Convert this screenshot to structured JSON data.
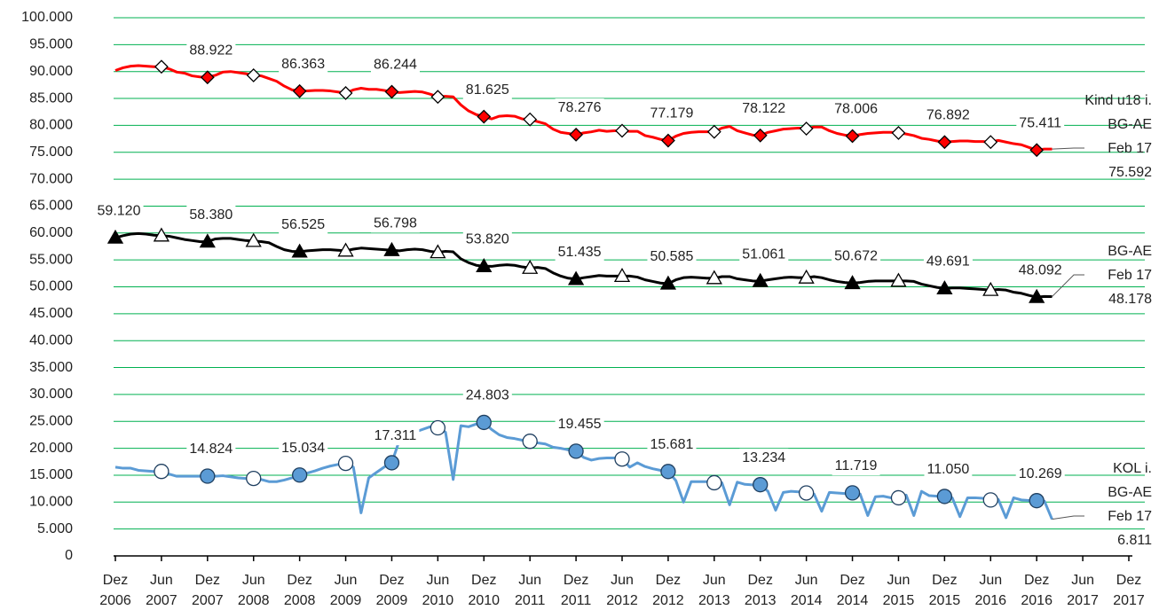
{
  "chart_data": {
    "type": "line",
    "categories": [
      "Dez 2006",
      null,
      null,
      null,
      null,
      null,
      "Jun 2007",
      null,
      null,
      null,
      null,
      null,
      "Dez 2007",
      null,
      null,
      null,
      null,
      null,
      "Jun 2008",
      null,
      null,
      null,
      null,
      null,
      "Dez 2008",
      null,
      null,
      null,
      null,
      null,
      "Jun 2009",
      null,
      null,
      null,
      null,
      null,
      "Dez 2009",
      null,
      null,
      null,
      null,
      null,
      "Jun 2010",
      null,
      null,
      null,
      null,
      null,
      "Dez 2010",
      null,
      null,
      null,
      null,
      null,
      "Jun 2011",
      null,
      null,
      null,
      null,
      null,
      "Dez 2011",
      null,
      null,
      null,
      null,
      null,
      "Jun 2012",
      null,
      null,
      null,
      null,
      null,
      "Dez 2012",
      null,
      null,
      null,
      null,
      null,
      "Jun 2013",
      null,
      null,
      null,
      null,
      null,
      "Dez 2013",
      null,
      null,
      null,
      null,
      null,
      "Jun 2014",
      null,
      null,
      null,
      null,
      null,
      "Dez 2014",
      null,
      null,
      null,
      null,
      null,
      "Jun 2015",
      null,
      null,
      null,
      null,
      null,
      "Dez 2015",
      null,
      null,
      null,
      null,
      null,
      "Jun 2016",
      null,
      null,
      null,
      null,
      null,
      "Dez 2016",
      null,
      null,
      null,
      null,
      null,
      "Jun 2017",
      null,
      null,
      null,
      null,
      null,
      "Dez 2017"
    ],
    "ylim": [
      0,
      100000
    ],
    "yticks": [
      0,
      {
        "value": 5000,
        "label": "5.000"
      },
      {
        "value": 10000,
        "label": "10.000"
      },
      {
        "value": 15000,
        "label": "15.000"
      },
      {
        "value": 20000,
        "label": "20.000"
      },
      {
        "value": 25000,
        "label": "25.000"
      },
      {
        "value": 30000,
        "label": "30.000"
      },
      {
        "value": 35000,
        "label": "35.000"
      },
      {
        "value": 40000,
        "label": "40.000"
      },
      {
        "value": 45000,
        "label": "45.000"
      },
      {
        "value": 50000,
        "label": "50.000"
      },
      {
        "value": 55000,
        "label": "55.000"
      },
      {
        "value": 60000,
        "label": "60.000"
      },
      {
        "value": 65000,
        "label": "65.000"
      },
      {
        "value": 70000,
        "label": "70.000"
      },
      {
        "value": 75000,
        "label": "75.000"
      },
      {
        "value": 80000,
        "label": "80.000"
      },
      {
        "value": 85000,
        "label": "85.000"
      },
      {
        "value": 90000,
        "label": "90.000"
      },
      {
        "value": 95000,
        "label": "95.000"
      },
      {
        "value": 100000,
        "label": "100.000"
      }
    ],
    "grid": true,
    "grid_color": "#00b050",
    "series": [
      {
        "name": "Kind u18 i. BG-AE",
        "color": "#ff0000",
        "marker": "diamond",
        "marker_color": "#ff0000",
        "end_label": "Feb 17",
        "values": [
          90200,
          90700,
          91000,
          91100,
          91000,
          90900,
          90900,
          90500,
          89900,
          89700,
          89200,
          89000,
          88922,
          89300,
          89900,
          90000,
          89800,
          89600,
          89300,
          89200,
          88700,
          88200,
          87300,
          86600,
          86363,
          86400,
          86500,
          86500,
          86400,
          86200,
          86000,
          86600,
          86900,
          86700,
          86700,
          86500,
          86244,
          86100,
          86200,
          86300,
          86200,
          85800,
          85300,
          85400,
          85300,
          83800,
          82700,
          82000,
          81625,
          81200,
          81700,
          81800,
          81700,
          81200,
          81100,
          80700,
          80300,
          79300,
          78700,
          78500,
          78276,
          78600,
          78800,
          79100,
          78900,
          79000,
          79000,
          78900,
          78900,
          78100,
          77800,
          77400,
          77179,
          78000,
          78500,
          78700,
          78800,
          78800,
          78800,
          79500,
          79800,
          79000,
          78600,
          78200,
          78122,
          78700,
          79000,
          79300,
          79400,
          79500,
          79400,
          79700,
          79700,
          79000,
          78500,
          78200,
          78006,
          78300,
          78500,
          78600,
          78700,
          78700,
          78600,
          78400,
          78100,
          77600,
          77400,
          77100,
          76892,
          77000,
          77100,
          77100,
          77000,
          77000,
          76900,
          77200,
          76900,
          76600,
          76400,
          75900,
          75411,
          75600,
          75592,
          null,
          null,
          null,
          null,
          null,
          null,
          null,
          null,
          null,
          null
        ],
        "value_labels": [
          null,
          null,
          null,
          null,
          null,
          null,
          null,
          null,
          null,
          null,
          null,
          null,
          "88.922",
          null,
          null,
          null,
          null,
          null,
          null,
          null,
          null,
          null,
          null,
          null,
          "86.363",
          null,
          null,
          null,
          null,
          null,
          null,
          null,
          null,
          null,
          null,
          null,
          "86.244",
          null,
          null,
          null,
          null,
          null,
          null,
          null,
          null,
          null,
          null,
          null,
          "81.625",
          null,
          null,
          null,
          null,
          null,
          null,
          null,
          null,
          null,
          null,
          null,
          "78.276",
          null,
          null,
          null,
          null,
          null,
          null,
          null,
          null,
          null,
          null,
          null,
          "77.179",
          null,
          null,
          null,
          null,
          null,
          null,
          null,
          null,
          null,
          null,
          null,
          "78.122",
          null,
          null,
          null,
          null,
          null,
          null,
          null,
          null,
          null,
          null,
          null,
          "78.006",
          null,
          null,
          null,
          null,
          null,
          null,
          null,
          null,
          null,
          null,
          null,
          "76.892",
          null,
          null,
          null,
          null,
          null,
          null,
          null,
          null,
          null,
          null,
          null,
          "75.411",
          null,
          "75.592",
          null,
          null,
          null,
          null,
          null,
          null,
          null,
          null,
          null,
          null
        ]
      },
      {
        "name": "BG-AE",
        "color": "#000000",
        "marker": "triangle",
        "marker_color": "#000000",
        "end_label": "Feb 17",
        "values": [
          59120,
          59500,
          59800,
          59900,
          59800,
          59600,
          59500,
          59400,
          59100,
          58800,
          58600,
          58400,
          58380,
          58900,
          59000,
          59000,
          58800,
          58600,
          58500,
          58400,
          58200,
          57500,
          56900,
          56600,
          56525,
          56700,
          56800,
          56900,
          56900,
          56800,
          56700,
          57000,
          57200,
          57100,
          57000,
          56900,
          56798,
          56700,
          56900,
          57000,
          56900,
          56600,
          56400,
          56600,
          56500,
          55200,
          54500,
          54000,
          53820,
          53800,
          54000,
          54100,
          54000,
          53700,
          53500,
          53600,
          53400,
          52600,
          52000,
          51600,
          51435,
          51700,
          51900,
          52100,
          52000,
          52000,
          52000,
          52000,
          51800,
          51300,
          51000,
          50700,
          50585,
          51300,
          51700,
          51800,
          51700,
          51600,
          51600,
          51900,
          51900,
          51500,
          51300,
          51100,
          51061,
          51300,
          51500,
          51700,
          51800,
          51700,
          51700,
          51900,
          51700,
          51300,
          51000,
          50800,
          50672,
          50800,
          51000,
          51100,
          51100,
          51100,
          51100,
          51100,
          51000,
          50500,
          50200,
          49900,
          49691,
          49800,
          49800,
          49700,
          49600,
          49500,
          49400,
          49500,
          49400,
          49000,
          48800,
          48400,
          48092,
          48200,
          48178,
          null,
          null,
          null,
          null,
          null,
          null,
          null,
          null,
          null,
          null
        ],
        "value_labels": [
          "59.120",
          null,
          null,
          null,
          null,
          null,
          null,
          null,
          null,
          null,
          null,
          null,
          "58.380",
          null,
          null,
          null,
          null,
          null,
          null,
          null,
          null,
          null,
          null,
          null,
          "56.525",
          null,
          null,
          null,
          null,
          null,
          null,
          null,
          null,
          null,
          null,
          null,
          "56.798",
          null,
          null,
          null,
          null,
          null,
          null,
          null,
          null,
          null,
          null,
          null,
          "53.820",
          null,
          null,
          null,
          null,
          null,
          null,
          null,
          null,
          null,
          null,
          null,
          "51.435",
          null,
          null,
          null,
          null,
          null,
          null,
          null,
          null,
          null,
          null,
          null,
          "50.585",
          null,
          null,
          null,
          null,
          null,
          null,
          null,
          null,
          null,
          null,
          null,
          "51.061",
          null,
          null,
          null,
          null,
          null,
          null,
          null,
          null,
          null,
          null,
          null,
          "50.672",
          null,
          null,
          null,
          null,
          null,
          null,
          null,
          null,
          null,
          null,
          null,
          "49.691",
          null,
          null,
          null,
          null,
          null,
          null,
          null,
          null,
          null,
          null,
          null,
          "48.092",
          null,
          "48.178",
          null,
          null,
          null,
          null,
          null,
          null,
          null,
          null,
          null,
          null
        ]
      },
      {
        "name": "KOL i. BG-AE",
        "color": "#5b9bd5",
        "marker": "circle",
        "marker_color": "#5b9bd5",
        "end_label": "Feb 17",
        "values": [
          16500,
          16300,
          16300,
          15900,
          15800,
          15700,
          15700,
          15200,
          14800,
          14800,
          14800,
          14800,
          14824,
          14800,
          14900,
          14700,
          14500,
          14400,
          14400,
          14200,
          13800,
          13800,
          14100,
          14500,
          15034,
          15400,
          15800,
          16300,
          16700,
          17000,
          17200,
          16500,
          8000,
          14500,
          15500,
          16500,
          17311,
          21500,
          23000,
          23000,
          23500,
          24000,
          23800,
          23000,
          14200,
          24200,
          24000,
          24500,
          24803,
          23500,
          22500,
          22000,
          21800,
          21500,
          21300,
          21000,
          20800,
          20200,
          20000,
          19700,
          19455,
          18300,
          17800,
          18100,
          18200,
          18200,
          18000,
          16500,
          17300,
          16600,
          16200,
          15900,
          15681,
          14000,
          10000,
          13800,
          13800,
          13800,
          13600,
          13600,
          9500,
          13700,
          13300,
          13200,
          13234,
          12000,
          8500,
          11800,
          12000,
          11900,
          11700,
          11500,
          8300,
          11800,
          11700,
          11600,
          11719,
          11500,
          7500,
          11000,
          11100,
          10800,
          10800,
          11300,
          7500,
          12000,
          11200,
          11100,
          11050,
          10800,
          7300,
          10800,
          10800,
          10700,
          10400,
          10500,
          7100,
          10800,
          10400,
          10300,
          10269,
          10200,
          6811,
          null,
          null,
          null,
          null,
          null,
          null,
          null,
          null,
          null,
          null
        ],
        "value_labels": [
          null,
          null,
          null,
          null,
          null,
          null,
          null,
          null,
          null,
          null,
          null,
          null,
          "14.824",
          null,
          null,
          null,
          null,
          null,
          null,
          null,
          null,
          null,
          null,
          null,
          "15.034",
          null,
          null,
          null,
          null,
          null,
          null,
          null,
          null,
          null,
          null,
          null,
          "17.311",
          null,
          null,
          null,
          null,
          null,
          null,
          null,
          null,
          null,
          null,
          null,
          "24.803",
          null,
          null,
          null,
          null,
          null,
          null,
          null,
          null,
          null,
          null,
          null,
          "19.455",
          null,
          null,
          null,
          null,
          null,
          null,
          null,
          null,
          null,
          null,
          null,
          "15.681",
          null,
          null,
          null,
          null,
          null,
          null,
          null,
          null,
          null,
          null,
          null,
          "13.234",
          null,
          null,
          null,
          null,
          null,
          null,
          null,
          null,
          null,
          null,
          null,
          "11.719",
          null,
          null,
          null,
          null,
          null,
          null,
          null,
          null,
          null,
          null,
          null,
          "11.050",
          null,
          null,
          null,
          null,
          null,
          null,
          null,
          null,
          null,
          null,
          null,
          "10.269",
          null,
          "6.811",
          null,
          null,
          null,
          null,
          null,
          null,
          null,
          null,
          null,
          null
        ]
      }
    ]
  }
}
